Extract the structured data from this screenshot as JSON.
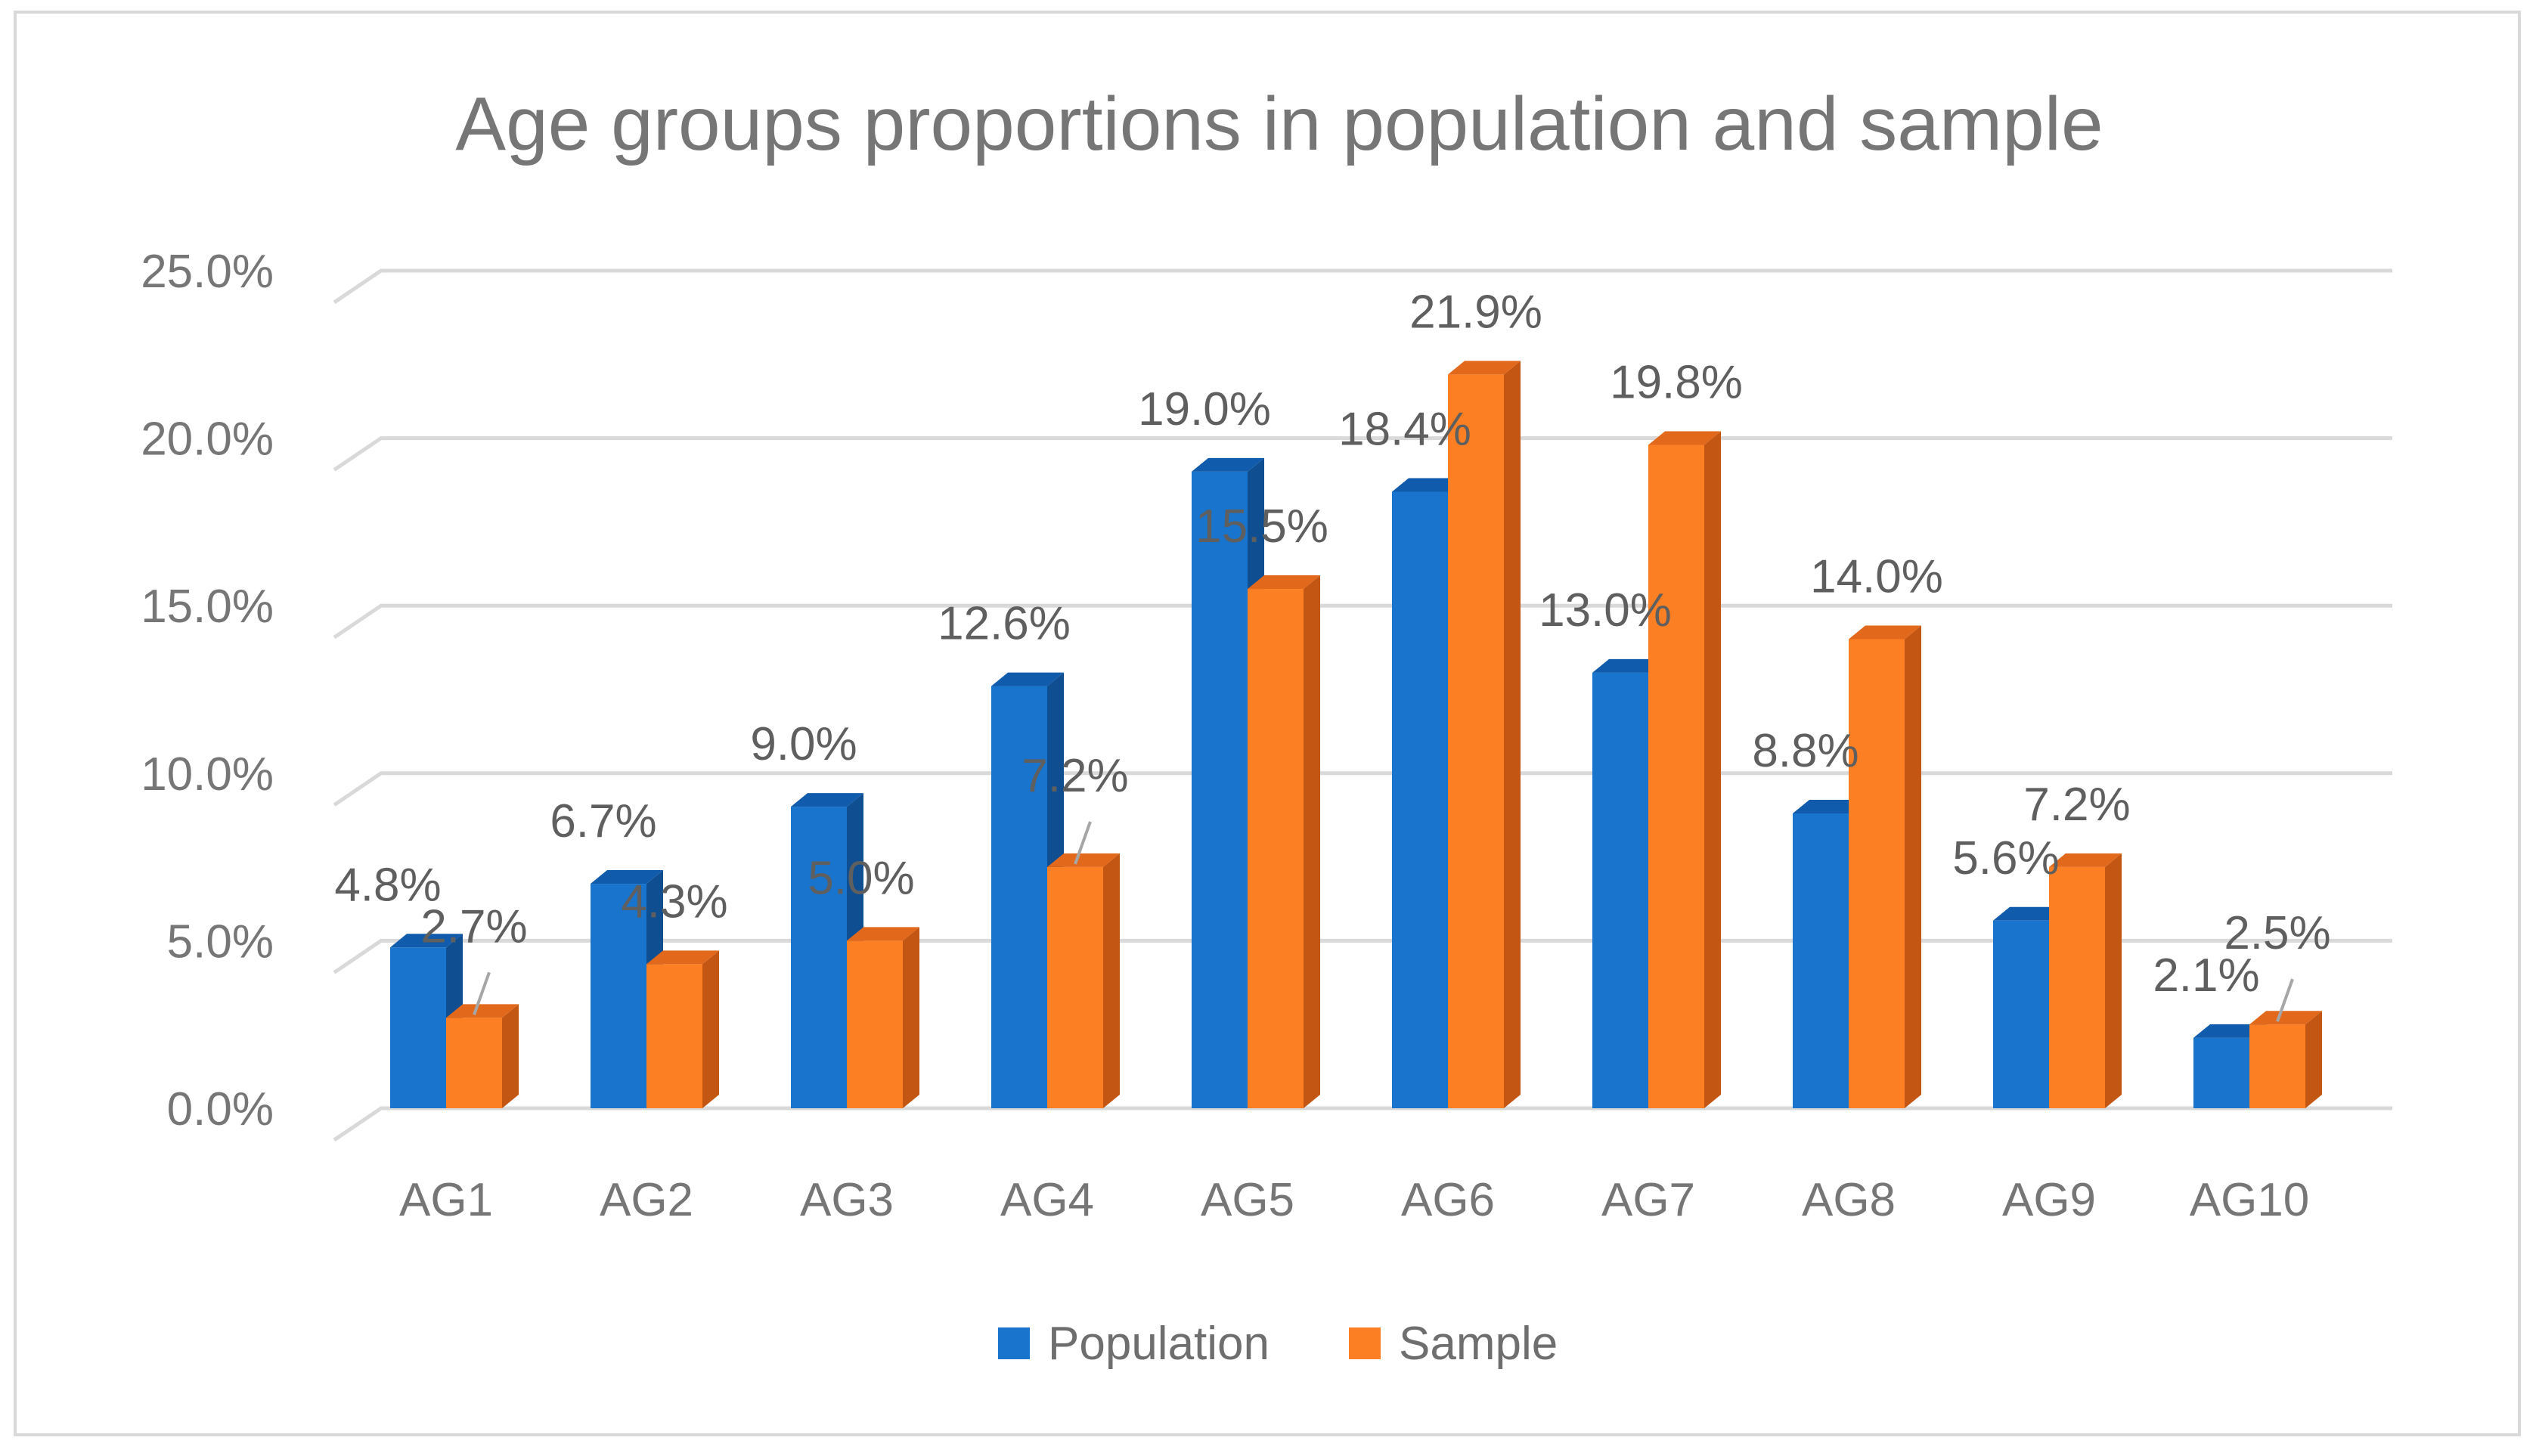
{
  "chart_data": {
    "type": "bar",
    "title": "Age groups proportions in population and sample",
    "categories": [
      "AG1",
      "AG2",
      "AG3",
      "AG4",
      "AG5",
      "AG6",
      "AG7",
      "AG8",
      "AG9",
      "AG10"
    ],
    "series": [
      {
        "name": "Population",
        "color": "#1874cd",
        "side": "#0f4f91",
        "top": "#105bab",
        "values": [
          4.8,
          6.7,
          9.0,
          12.6,
          19.0,
          18.4,
          13.0,
          8.8,
          5.6,
          2.1
        ],
        "labels": [
          "4.8%",
          "6.7%",
          "9.0%",
          "12.6%",
          "19.0%",
          "18.4%",
          "13.0%",
          "8.8%",
          "5.6%",
          "2.1%"
        ]
      },
      {
        "name": "Sample",
        "color": "#fd7f23",
        "side": "#c35613",
        "top": "#e2691b",
        "values": [
          2.7,
          4.3,
          5.0,
          7.2,
          15.5,
          21.9,
          19.8,
          14.0,
          7.2,
          2.5
        ],
        "labels": [
          "2.7%",
          "4.3%",
          "5.0%",
          "7.2%",
          "15.5%",
          "21.9%",
          "19.8%",
          "14.0%",
          "7.2%",
          "2.5%"
        ]
      }
    ],
    "yticks": [
      "0.0%",
      "5.0%",
      "10.0%",
      "15.0%",
      "20.0%",
      "25.0%"
    ],
    "ylim": [
      0,
      25
    ],
    "xlabel": "",
    "ylabel": "",
    "grid": true,
    "legend": "bottom-center",
    "style": "3d-clustered-column"
  }
}
